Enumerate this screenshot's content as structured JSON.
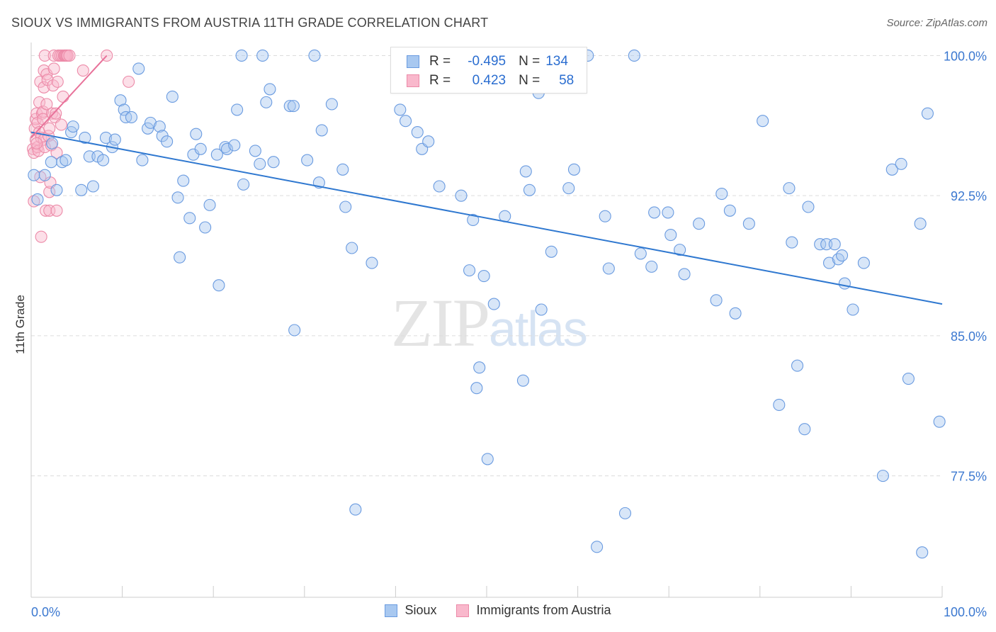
{
  "title": "SIOUX VS IMMIGRANTS FROM AUSTRIA 11TH GRADE CORRELATION CHART",
  "source": "Source: ZipAtlas.com",
  "watermark": {
    "zip": "ZIP",
    "atlas": "atlas"
  },
  "legend": {
    "rows": [
      {
        "r_label": "R =",
        "r_value": "-0.495",
        "n_label": "N =",
        "n_value": "134",
        "color": "#a8c8f0",
        "border": "#6a9be0"
      },
      {
        "r_label": "R =",
        "r_value": "0.423",
        "n_label": "N =",
        "n_value": "58",
        "color": "#f9b8cc",
        "border": "#ec8aa8"
      }
    ]
  },
  "bottom_legend": [
    "Sioux",
    "Immigrants from Austria"
  ],
  "chart_data": {
    "type": "scatter",
    "title": "SIOUX VS IMMIGRANTS FROM AUSTRIA 11TH GRADE CORRELATION CHART",
    "xlabel": "",
    "ylabel": "11th Grade",
    "xlim": [
      0,
      100
    ],
    "ylim": [
      71.0,
      100.7
    ],
    "x_tick_labels": [
      "0.0%",
      "100.0%"
    ],
    "y_ticks": [
      77.5,
      85.0,
      92.5,
      100.0
    ],
    "y_tick_labels": [
      "77.5%",
      "85.0%",
      "92.5%",
      "100.0%"
    ],
    "grid": true,
    "legend_position": "top-center",
    "series": [
      {
        "name": "Sioux",
        "color": "#a8c8f0",
        "stroke": "#6a9be0",
        "trend": {
          "x": [
            0.0,
            100.0
          ],
          "y": [
            95.9,
            86.7
          ],
          "color": "#2f78d0"
        },
        "points": [
          [
            0.3,
            93.6
          ],
          [
            0.7,
            92.3
          ],
          [
            1.5,
            93.6
          ],
          [
            2.2,
            94.3
          ],
          [
            2.3,
            95.3
          ],
          [
            2.8,
            92.8
          ],
          [
            3.4,
            94.3
          ],
          [
            3.8,
            94.4
          ],
          [
            4.4,
            95.9
          ],
          [
            4.6,
            96.2
          ],
          [
            5.5,
            92.8
          ],
          [
            5.9,
            95.6
          ],
          [
            6.4,
            94.6
          ],
          [
            6.8,
            93.0
          ],
          [
            7.3,
            94.6
          ],
          [
            7.9,
            94.4
          ],
          [
            8.2,
            95.6
          ],
          [
            8.9,
            95.1
          ],
          [
            9.2,
            95.5
          ],
          [
            9.8,
            97.6
          ],
          [
            10.2,
            97.1
          ],
          [
            10.4,
            96.7
          ],
          [
            11.0,
            96.7
          ],
          [
            11.8,
            99.3
          ],
          [
            12.2,
            94.4
          ],
          [
            12.8,
            96.1
          ],
          [
            13.1,
            96.4
          ],
          [
            14.1,
            96.2
          ],
          [
            14.4,
            95.7
          ],
          [
            14.9,
            95.4
          ],
          [
            15.5,
            97.8
          ],
          [
            16.1,
            92.4
          ],
          [
            16.3,
            89.2
          ],
          [
            16.7,
            93.3
          ],
          [
            17.4,
            91.3
          ],
          [
            17.8,
            94.7
          ],
          [
            18.1,
            95.8
          ],
          [
            18.6,
            95.0
          ],
          [
            19.1,
            90.8
          ],
          [
            19.6,
            92.0
          ],
          [
            20.4,
            94.7
          ],
          [
            20.6,
            87.7
          ],
          [
            21.3,
            95.1
          ],
          [
            21.5,
            95.0
          ],
          [
            22.3,
            95.2
          ],
          [
            22.6,
            97.1
          ],
          [
            23.1,
            100.0
          ],
          [
            23.3,
            93.1
          ],
          [
            24.6,
            94.9
          ],
          [
            25.1,
            94.2
          ],
          [
            25.4,
            100.0
          ],
          [
            25.8,
            97.5
          ],
          [
            26.2,
            98.2
          ],
          [
            26.6,
            94.3
          ],
          [
            28.4,
            97.3
          ],
          [
            28.8,
            97.3
          ],
          [
            28.9,
            85.3
          ],
          [
            30.3,
            94.4
          ],
          [
            31.1,
            100.0
          ],
          [
            31.6,
            93.2
          ],
          [
            31.9,
            96.0
          ],
          [
            33.0,
            97.4
          ],
          [
            34.2,
            93.9
          ],
          [
            34.5,
            91.9
          ],
          [
            35.2,
            89.7
          ],
          [
            35.6,
            75.7
          ],
          [
            37.4,
            88.9
          ],
          [
            40.5,
            97.1
          ],
          [
            41.1,
            96.5
          ],
          [
            42.4,
            95.9
          ],
          [
            42.9,
            95.0
          ],
          [
            43.6,
            95.4
          ],
          [
            44.8,
            93.0
          ],
          [
            47.0,
            100.0
          ],
          [
            47.2,
            92.5
          ],
          [
            48.1,
            88.5
          ],
          [
            48.5,
            91.2
          ],
          [
            48.9,
            82.2
          ],
          [
            49.2,
            83.3
          ],
          [
            49.7,
            88.2
          ],
          [
            50.1,
            78.4
          ],
          [
            50.8,
            86.7
          ],
          [
            52.0,
            91.4
          ],
          [
            54.0,
            82.6
          ],
          [
            54.3,
            93.8
          ],
          [
            54.7,
            92.8
          ],
          [
            55.7,
            98.0
          ],
          [
            56.0,
            86.4
          ],
          [
            57.1,
            89.5
          ],
          [
            59.0,
            92.9
          ],
          [
            59.6,
            93.9
          ],
          [
            61.1,
            100.0
          ],
          [
            62.1,
            73.7
          ],
          [
            63.0,
            91.4
          ],
          [
            63.4,
            88.6
          ],
          [
            65.2,
            75.5
          ],
          [
            66.2,
            100.0
          ],
          [
            66.9,
            89.4
          ],
          [
            68.1,
            88.7
          ],
          [
            68.4,
            91.6
          ],
          [
            69.9,
            91.6
          ],
          [
            70.2,
            90.4
          ],
          [
            71.2,
            89.6
          ],
          [
            71.7,
            88.3
          ],
          [
            73.3,
            91.0
          ],
          [
            75.2,
            86.9
          ],
          [
            75.8,
            92.6
          ],
          [
            76.7,
            91.7
          ],
          [
            77.3,
            86.2
          ],
          [
            78.8,
            91.0
          ],
          [
            80.3,
            96.5
          ],
          [
            82.1,
            81.3
          ],
          [
            83.2,
            92.9
          ],
          [
            83.5,
            90.0
          ],
          [
            84.1,
            83.4
          ],
          [
            84.9,
            80.0
          ],
          [
            85.3,
            91.9
          ],
          [
            86.6,
            89.9
          ],
          [
            87.3,
            89.9
          ],
          [
            87.6,
            88.9
          ],
          [
            88.2,
            89.9
          ],
          [
            88.6,
            89.1
          ],
          [
            89.0,
            89.3
          ],
          [
            89.3,
            87.8
          ],
          [
            90.2,
            86.4
          ],
          [
            91.4,
            88.9
          ],
          [
            93.5,
            77.5
          ],
          [
            94.5,
            93.9
          ],
          [
            95.5,
            94.2
          ],
          [
            96.3,
            82.7
          ],
          [
            97.6,
            91.0
          ],
          [
            97.8,
            73.4
          ],
          [
            98.4,
            96.9
          ],
          [
            99.7,
            80.4
          ]
        ]
      },
      {
        "name": "Immigrants from Austria",
        "color": "#f9b8cc",
        "stroke": "#ec8aa8",
        "trend": {
          "x": [
            0.0,
            8.3
          ],
          "y": [
            95.6,
            100.0
          ],
          "color": "#e8729a"
        },
        "points": [
          [
            0.2,
            95.0
          ],
          [
            0.3,
            92.2
          ],
          [
            0.3,
            94.8
          ],
          [
            0.4,
            96.1
          ],
          [
            0.5,
            95.5
          ],
          [
            0.5,
            96.6
          ],
          [
            0.6,
            96.9
          ],
          [
            0.7,
            95.1
          ],
          [
            0.7,
            96.4
          ],
          [
            0.8,
            94.9
          ],
          [
            0.9,
            97.5
          ],
          [
            0.9,
            95.9
          ],
          [
            1.0,
            98.6
          ],
          [
            1.0,
            93.5
          ],
          [
            1.1,
            95.6
          ],
          [
            1.1,
            90.3
          ],
          [
            1.2,
            96.9
          ],
          [
            1.3,
            97.0
          ],
          [
            1.3,
            96.6
          ],
          [
            1.4,
            99.2
          ],
          [
            1.4,
            98.3
          ],
          [
            1.4,
            95.5
          ],
          [
            1.5,
            100.0
          ],
          [
            1.5,
            95.1
          ],
          [
            1.6,
            91.7
          ],
          [
            1.7,
            99.0
          ],
          [
            1.7,
            97.4
          ],
          [
            1.8,
            98.7
          ],
          [
            1.9,
            95.7
          ],
          [
            2.0,
            96.1
          ],
          [
            2.0,
            92.7
          ],
          [
            2.0,
            91.7
          ],
          [
            2.1,
            93.2
          ],
          [
            2.2,
            95.2
          ],
          [
            2.3,
            96.9
          ],
          [
            2.4,
            98.4
          ],
          [
            2.5,
            100.0
          ],
          [
            2.5,
            99.3
          ],
          [
            2.6,
            96.7
          ],
          [
            2.7,
            96.9
          ],
          [
            2.8,
            94.8
          ],
          [
            2.8,
            91.7
          ],
          [
            2.9,
            98.6
          ],
          [
            3.0,
            100.0
          ],
          [
            3.2,
            100.0
          ],
          [
            3.3,
            96.3
          ],
          [
            3.4,
            100.0
          ],
          [
            3.5,
            97.8
          ],
          [
            3.6,
            100.0
          ],
          [
            3.7,
            100.0
          ],
          [
            3.8,
            100.0
          ],
          [
            3.9,
            100.0
          ],
          [
            4.0,
            100.0
          ],
          [
            4.2,
            100.0
          ],
          [
            5.7,
            99.2
          ],
          [
            8.3,
            100.0
          ],
          [
            10.7,
            98.6
          ],
          [
            0.6,
            95.3
          ]
        ]
      }
    ]
  }
}
